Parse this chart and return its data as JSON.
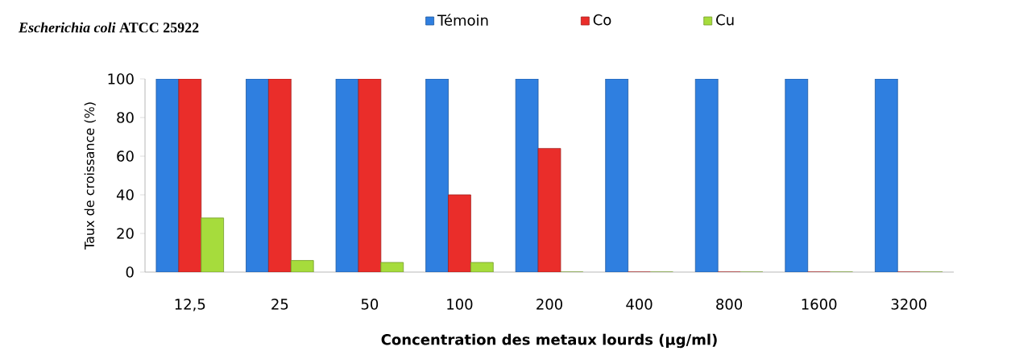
{
  "chart_data": {
    "type": "bar",
    "title": "*Escherichia coli* ATCC 25922",
    "xlabel": "Concentration des metaux lourds (µg/ml)",
    "ylabel": "Taux de croissance  (%)",
    "categories": [
      "12,5",
      "25",
      "50",
      "100",
      "200",
      "400",
      "800",
      "1600",
      "3200"
    ],
    "series": [
      {
        "name": "Témoin",
        "color": "#2f7fe0",
        "values": [
          100,
          100,
          100,
          100,
          100,
          100,
          100,
          100,
          100
        ]
      },
      {
        "name": "Co",
        "color": "#ea2d2a",
        "values": [
          100,
          100,
          100,
          40,
          64,
          0,
          0,
          0,
          0
        ]
      },
      {
        "name": "Cu",
        "color": "#a6dc3c",
        "values": [
          28,
          6,
          5,
          5,
          0,
          0,
          0,
          0,
          0
        ]
      }
    ],
    "ylim": [
      0,
      100
    ],
    "yticks": [
      0,
      20,
      40,
      60,
      80,
      100
    ],
    "legend": "top"
  }
}
